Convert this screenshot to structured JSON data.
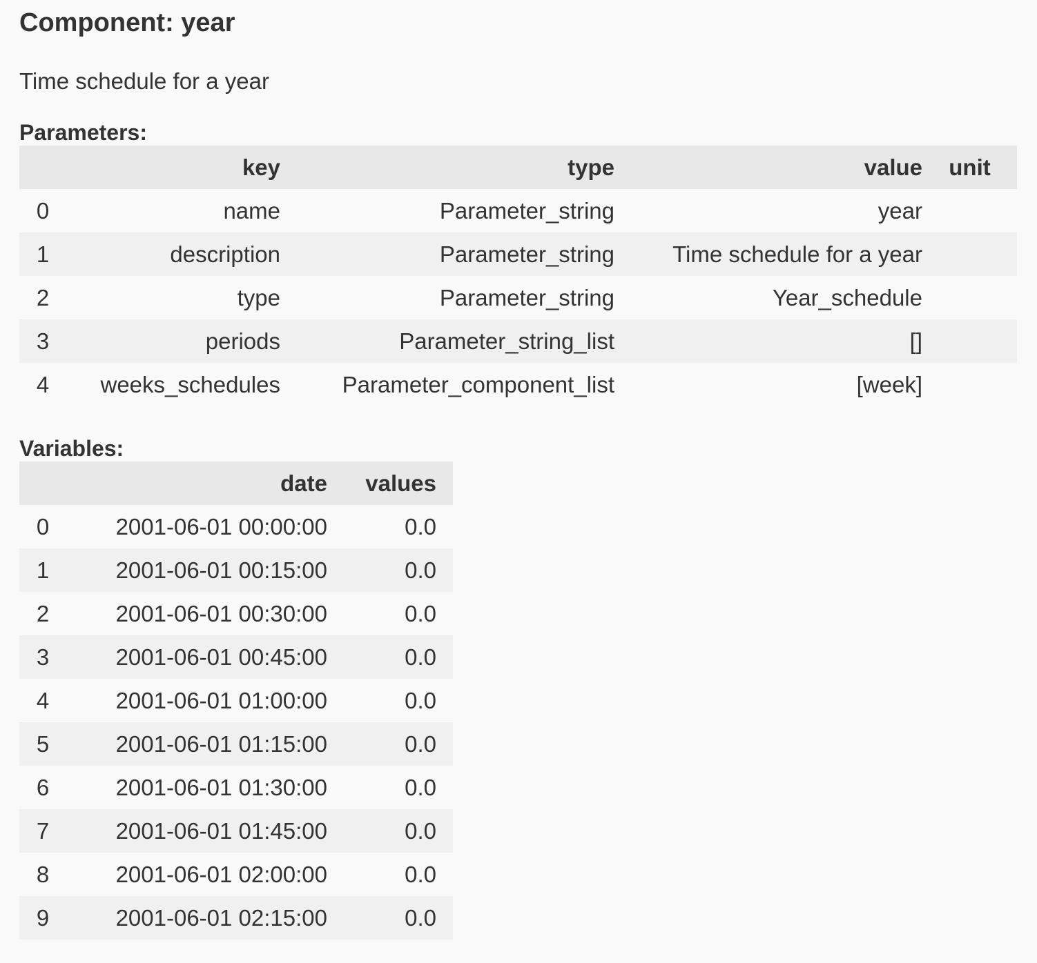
{
  "component": {
    "title": "Component: year",
    "description": "Time schedule for a year"
  },
  "parameters": {
    "label": "Parameters:",
    "headers": {
      "index": "",
      "key": "key",
      "type": "type",
      "value": "value",
      "unit": "unit"
    },
    "rows": [
      {
        "index": "0",
        "key": "name",
        "type": "Parameter_string",
        "value": "year",
        "unit": ""
      },
      {
        "index": "1",
        "key": "description",
        "type": "Parameter_string",
        "value": "Time schedule for a year",
        "unit": ""
      },
      {
        "index": "2",
        "key": "type",
        "type": "Parameter_string",
        "value": "Year_schedule",
        "unit": ""
      },
      {
        "index": "3",
        "key": "periods",
        "type": "Parameter_string_list",
        "value": "[]",
        "unit": ""
      },
      {
        "index": "4",
        "key": "weeks_schedules",
        "type": "Parameter_component_list",
        "value": "[week]",
        "unit": ""
      }
    ]
  },
  "variables": {
    "label": "Variables:",
    "headers": {
      "index": "",
      "date": "date",
      "values": "values"
    },
    "rows": [
      {
        "index": "0",
        "date": "2001-06-01 00:00:00",
        "values": "0.0"
      },
      {
        "index": "1",
        "date": "2001-06-01 00:15:00",
        "values": "0.0"
      },
      {
        "index": "2",
        "date": "2001-06-01 00:30:00",
        "values": "0.0"
      },
      {
        "index": "3",
        "date": "2001-06-01 00:45:00",
        "values": "0.0"
      },
      {
        "index": "4",
        "date": "2001-06-01 01:00:00",
        "values": "0.0"
      },
      {
        "index": "5",
        "date": "2001-06-01 01:15:00",
        "values": "0.0"
      },
      {
        "index": "6",
        "date": "2001-06-01 01:30:00",
        "values": "0.0"
      },
      {
        "index": "7",
        "date": "2001-06-01 01:45:00",
        "values": "0.0"
      },
      {
        "index": "8",
        "date": "2001-06-01 02:00:00",
        "values": "0.0"
      },
      {
        "index": "9",
        "date": "2001-06-01 02:15:00",
        "values": "0.0"
      }
    ]
  }
}
